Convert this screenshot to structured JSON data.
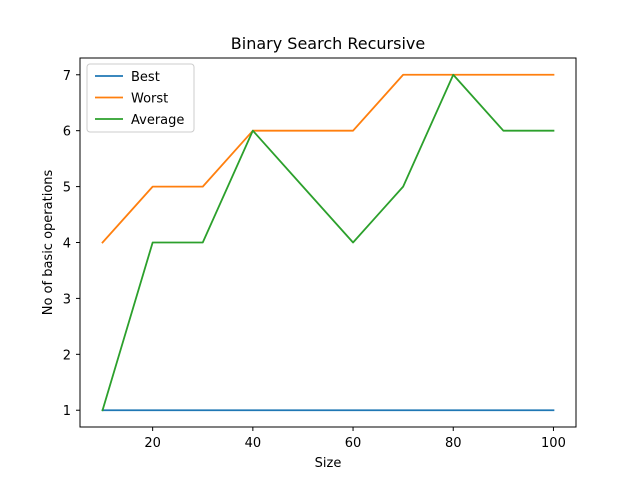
{
  "chart_data": {
    "type": "line",
    "title": "Binary Search Recursive",
    "xlabel": "Size",
    "ylabel": "No of basic operations",
    "x": [
      10,
      20,
      30,
      40,
      50,
      60,
      70,
      80,
      90,
      100
    ],
    "xlim": [
      5.5,
      104.5
    ],
    "ylim": [
      0.7,
      7.3
    ],
    "xticks": [
      20,
      40,
      60,
      80,
      100
    ],
    "yticks": [
      1,
      2,
      3,
      4,
      5,
      6,
      7
    ],
    "legend_position": "top-left",
    "series": [
      {
        "name": "Best",
        "color": "#1f77b4",
        "values": [
          1,
          1,
          1,
          1,
          1,
          1,
          1,
          1,
          1,
          1
        ]
      },
      {
        "name": "Worst",
        "color": "#ff7f0e",
        "values": [
          4,
          5,
          5,
          6,
          6,
          6,
          7,
          7,
          7,
          7
        ]
      },
      {
        "name": "Average",
        "color": "#2ca02c",
        "values": [
          1,
          4,
          4,
          6,
          5,
          4,
          5,
          7,
          6,
          6
        ]
      }
    ]
  }
}
